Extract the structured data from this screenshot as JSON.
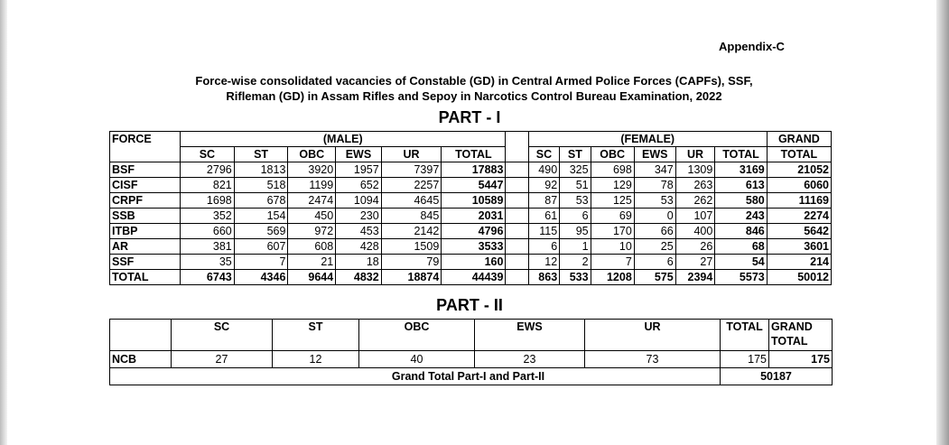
{
  "appendix": "Appendix-C",
  "title_line1": "Force-wise consolidated vacancies of Constable (GD) in Central Armed Police Forces (CAPFs), SSF,",
  "title_line2": "Rifleman (GD) in Assam Rifles and Sepoy in Narcotics Control Bureau Examination, 2022",
  "part1": {
    "label": "PART - I",
    "force_header": "FORCE",
    "male_header": "(MALE)",
    "female_header": "(FEMALE)",
    "grand_header": "GRAND",
    "grand_sub": "TOTAL",
    "sub_headers": [
      "SC",
      "ST",
      "OBC",
      "EWS",
      "UR",
      "TOTAL"
    ],
    "rows": [
      {
        "force": "BSF",
        "male": [
          "2796",
          "1813",
          "3920",
          "1957",
          "7397",
          "17883"
        ],
        "female": [
          "490",
          "325",
          "698",
          "347",
          "1309",
          "3169"
        ],
        "grand": "21052"
      },
      {
        "force": "CISF",
        "male": [
          "821",
          "518",
          "1199",
          "652",
          "2257",
          "5447"
        ],
        "female": [
          "92",
          "51",
          "129",
          "78",
          "263",
          "613"
        ],
        "grand": "6060"
      },
      {
        "force": "CRPF",
        "male": [
          "1698",
          "678",
          "2474",
          "1094",
          "4645",
          "10589"
        ],
        "female": [
          "87",
          "53",
          "125",
          "53",
          "262",
          "580"
        ],
        "grand": "11169"
      },
      {
        "force": "SSB",
        "male": [
          "352",
          "154",
          "450",
          "230",
          "845",
          "2031"
        ],
        "female": [
          "61",
          "6",
          "69",
          "0",
          "107",
          "243"
        ],
        "grand": "2274"
      },
      {
        "force": "ITBP",
        "male": [
          "660",
          "569",
          "972",
          "453",
          "2142",
          "4796"
        ],
        "female": [
          "115",
          "95",
          "170",
          "66",
          "400",
          "846"
        ],
        "grand": "5642"
      },
      {
        "force": "AR",
        "male": [
          "381",
          "607",
          "608",
          "428",
          "1509",
          "3533"
        ],
        "female": [
          "6",
          "1",
          "10",
          "25",
          "26",
          "68"
        ],
        "grand": "3601"
      },
      {
        "force": "SSF",
        "male": [
          "35",
          "7",
          "21",
          "18",
          "79",
          "160"
        ],
        "female": [
          "12",
          "2",
          "7",
          "6",
          "27",
          "54"
        ],
        "grand": "214"
      }
    ],
    "total": {
      "force": "TOTAL",
      "male": [
        "6743",
        "4346",
        "9644",
        "4832",
        "18874",
        "44439"
      ],
      "female": [
        "863",
        "533",
        "1208",
        "575",
        "2394",
        "5573"
      ],
      "grand": "50012"
    }
  },
  "part2": {
    "label": "PART - II",
    "headers": [
      "SC",
      "ST",
      "OBC",
      "EWS",
      "UR",
      "TOTAL",
      "GRAND TOTAL"
    ],
    "row": {
      "force": "NCB",
      "values": [
        "27",
        "12",
        "40",
        "23",
        "73",
        "175",
        "175"
      ]
    },
    "grand_total_label": "Grand Total Part-I and Part-II",
    "grand_total_value": "50187"
  }
}
